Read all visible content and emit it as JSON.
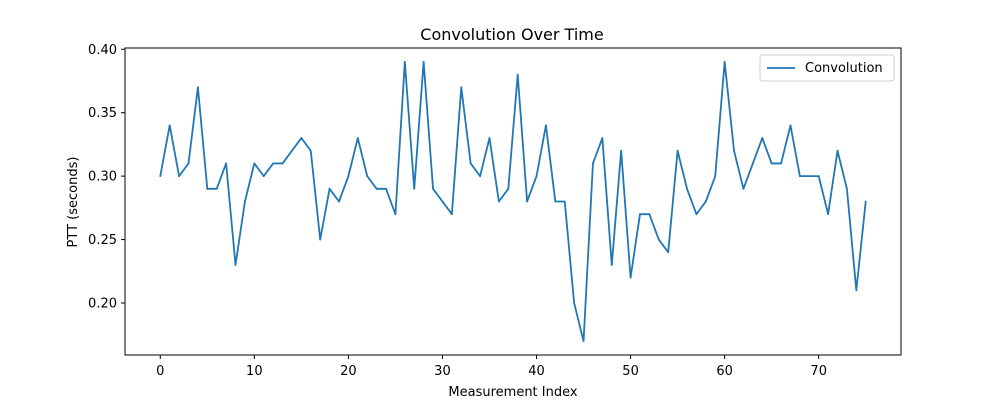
{
  "chart_data": {
    "type": "line",
    "title": "Convolution Over Time",
    "xlabel": "Measurement Index",
    "ylabel": "PTT (seconds)",
    "xlim": [
      -3.75,
      78.75
    ],
    "ylim": [
      0.159,
      0.401
    ],
    "xticks": [
      0,
      10,
      20,
      30,
      40,
      50,
      60,
      70
    ],
    "yticks": [
      0.2,
      0.25,
      0.3,
      0.35,
      0.4
    ],
    "ytick_labels": [
      "0.20",
      "0.25",
      "0.30",
      "0.35",
      "0.40"
    ],
    "grid": false,
    "legend_position": "top-right",
    "series": [
      {
        "name": "Convolution",
        "color": "#1f77b4",
        "x": [
          0,
          1,
          2,
          3,
          4,
          5,
          6,
          7,
          8,
          9,
          10,
          11,
          12,
          13,
          14,
          15,
          16,
          17,
          18,
          19,
          20,
          21,
          22,
          23,
          24,
          25,
          26,
          27,
          28,
          29,
          30,
          31,
          32,
          33,
          34,
          35,
          36,
          37,
          38,
          39,
          40,
          41,
          42,
          43,
          44,
          45,
          46,
          47,
          48,
          49,
          50,
          51,
          52,
          53,
          54,
          55,
          56,
          57,
          58,
          59,
          60,
          61,
          62,
          63,
          64,
          65,
          66,
          67,
          68,
          69,
          70,
          71,
          72,
          73,
          74,
          75
        ],
        "values": [
          0.3,
          0.34,
          0.3,
          0.31,
          0.37,
          0.29,
          0.29,
          0.31,
          0.23,
          0.28,
          0.31,
          0.3,
          0.31,
          0.31,
          0.32,
          0.33,
          0.32,
          0.25,
          0.29,
          0.28,
          0.3,
          0.33,
          0.3,
          0.29,
          0.29,
          0.27,
          0.39,
          0.29,
          0.39,
          0.29,
          0.28,
          0.27,
          0.37,
          0.31,
          0.3,
          0.33,
          0.28,
          0.29,
          0.38,
          0.28,
          0.3,
          0.34,
          0.28,
          0.28,
          0.2,
          0.17,
          0.31,
          0.33,
          0.23,
          0.32,
          0.22,
          0.27,
          0.27,
          0.25,
          0.24,
          0.32,
          0.29,
          0.27,
          0.28,
          0.3,
          0.39,
          0.32,
          0.29,
          0.31,
          0.33,
          0.31,
          0.31,
          0.34,
          0.3,
          0.3,
          0.3,
          0.27,
          0.32,
          0.29,
          0.21,
          0.28
        ]
      }
    ]
  }
}
